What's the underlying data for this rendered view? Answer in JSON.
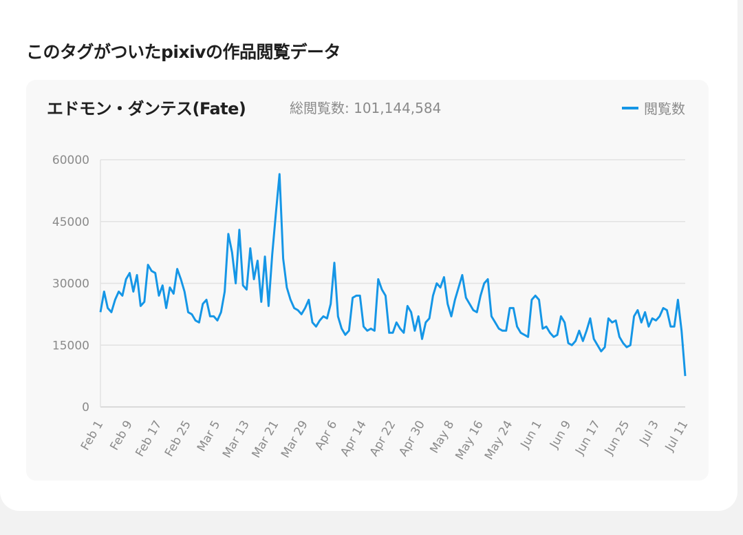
{
  "section_title": "このタグがついたpixivの作品閲覧データ",
  "tag_name": "エドモン・ダンテス(Fate)",
  "total_views_label": "総閲覧数: 101,144,584",
  "colors": {
    "line": "#1596e6",
    "panel": "#f8f8f8"
  },
  "chart_data": {
    "type": "line",
    "title": "エドモン・ダンテス(Fate)",
    "xlabel": "",
    "ylabel": "",
    "legend": {
      "position": "top-right",
      "entries": [
        "閲覧数"
      ]
    },
    "grid": true,
    "ylim": [
      0,
      60000
    ],
    "y_ticks": [
      0,
      15000,
      30000,
      45000,
      60000
    ],
    "y_tick_labels": [
      "0",
      "15000",
      "30000",
      "45000",
      "60000"
    ],
    "x_start": "Feb 1",
    "x_end": "Jul 11",
    "x_tick_every_days": 8,
    "x_tick_labels": [
      "Feb 1",
      "Feb 9",
      "Feb 17",
      "Feb 25",
      "Mar 5",
      "Mar 13",
      "Mar 21",
      "Mar 29",
      "Apr 6",
      "Apr 14",
      "Apr 22",
      "Apr 30",
      "May 8",
      "May 16",
      "May 24",
      "Jun 1",
      "Jun 9",
      "Jun 17",
      "Jun 25",
      "Jul 3",
      "Jul 11"
    ],
    "series": [
      {
        "name": "閲覧数",
        "values": [
          23000,
          28000,
          24000,
          23000,
          26000,
          28000,
          27000,
          31000,
          32500,
          28000,
          32000,
          24500,
          25500,
          34500,
          33000,
          32500,
          27000,
          29500,
          24000,
          29000,
          27500,
          33500,
          31000,
          28000,
          23000,
          22500,
          21000,
          20500,
          25000,
          26000,
          22000,
          22000,
          21000,
          23000,
          28000,
          42000,
          37500,
          30000,
          43000,
          29500,
          28500,
          38500,
          31000,
          35500,
          25500,
          36500,
          24500,
          37000,
          47000,
          56500,
          36000,
          29000,
          26000,
          24000,
          23500,
          22500,
          24000,
          26000,
          20500,
          19500,
          21000,
          22000,
          21500,
          25000,
          35000,
          22000,
          19000,
          17500,
          18500,
          26500,
          27000,
          27000,
          19500,
          18500,
          19000,
          18500,
          31000,
          28500,
          27000,
          18000,
          18000,
          20500,
          19000,
          18000,
          24500,
          23000,
          18500,
          22000,
          16500,
          20500,
          21500,
          27000,
          30000,
          29000,
          31500,
          25000,
          22000,
          26000,
          29000,
          32000,
          26500,
          25000,
          23500,
          23000,
          27000,
          30000,
          31000,
          22000,
          20500,
          19000,
          18500,
          18500,
          24000,
          24000,
          19500,
          18000,
          17500,
          17000,
          26000,
          27000,
          26000,
          19000,
          19500,
          18000,
          17000,
          17500,
          22000,
          20500,
          15500,
          15000,
          16000,
          18500,
          16000,
          18500,
          21500,
          16500,
          15000,
          13500,
          14500,
          21500,
          20500,
          21000,
          17000,
          15500,
          14500,
          15000,
          22000,
          23500,
          20500,
          23000,
          19500,
          21500,
          21000,
          22000,
          24000,
          23500,
          19500,
          19500,
          26000,
          18500,
          7500
        ]
      }
    ]
  }
}
